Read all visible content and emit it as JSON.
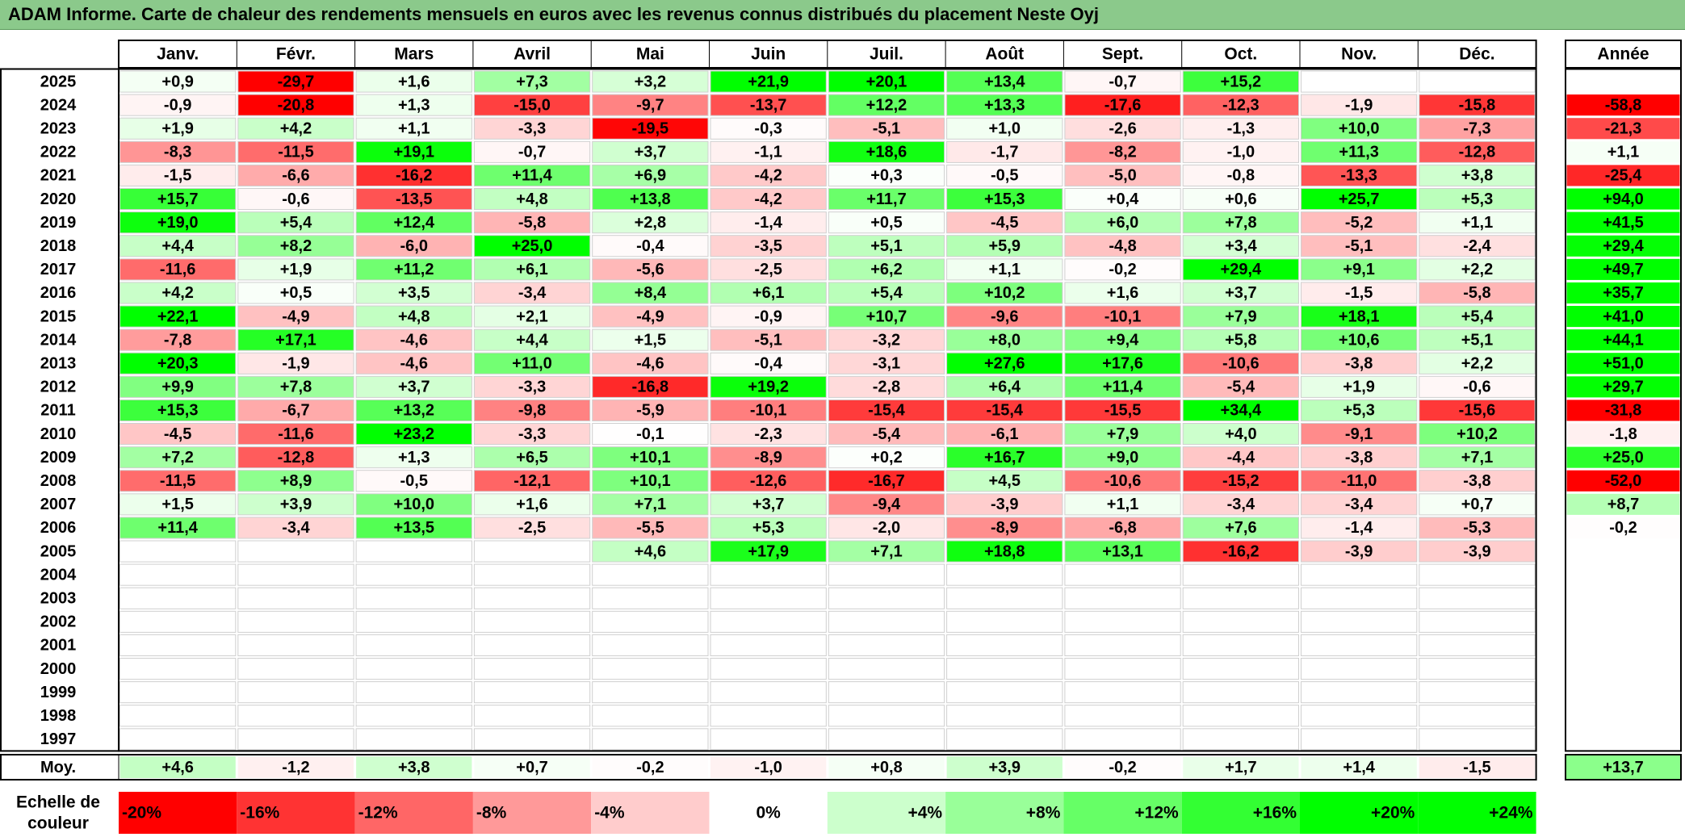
{
  "title": "ADAM Informe. Carte de chaleur des rendements mensuels en euros avec les revenus connus distribués du placement Neste Oyj",
  "colors": {
    "negative": "#ff0000",
    "neutral": "#ffffff",
    "positive": "#00ff00",
    "title_bar": "#8bc98b"
  },
  "chart_data": {
    "type": "heatmap",
    "title": "ADAM Informe. Carte de chaleur des rendements mensuels en euros avec les revenus connus distribués du placement Neste Oyj",
    "columns": [
      "Janv.",
      "Févr.",
      "Mars",
      "Avril",
      "Mai",
      "Juin",
      "Juil.",
      "Août",
      "Sept.",
      "Oct.",
      "Nov.",
      "Déc."
    ],
    "year_header": "Année",
    "rows": [
      {
        "year": "2025",
        "months": [
          "+0,9",
          "-29,7",
          "+1,6",
          "+7,3",
          "+3,2",
          "+21,9",
          "+20,1",
          "+13,4",
          "-0,7",
          "+15,2",
          "",
          ""
        ],
        "annual": ""
      },
      {
        "year": "2024",
        "months": [
          "-0,9",
          "-20,8",
          "+1,3",
          "-15,0",
          "-9,7",
          "-13,7",
          "+12,2",
          "+13,3",
          "-17,6",
          "-12,3",
          "-1,9",
          "-15,8"
        ],
        "annual": "-58,8"
      },
      {
        "year": "2023",
        "months": [
          "+1,9",
          "+4,2",
          "+1,1",
          "-3,3",
          "-19,5",
          "-0,3",
          "-5,1",
          "+1,0",
          "-2,6",
          "-1,3",
          "+10,0",
          "-7,3"
        ],
        "annual": "-21,3"
      },
      {
        "year": "2022",
        "months": [
          "-8,3",
          "-11,5",
          "+19,1",
          "-0,7",
          "+3,7",
          "-1,1",
          "+18,6",
          "-1,7",
          "-8,2",
          "-1,0",
          "+11,3",
          "-12,8"
        ],
        "annual": "+1,1"
      },
      {
        "year": "2021",
        "months": [
          "-1,5",
          "-6,6",
          "-16,2",
          "+11,4",
          "+6,9",
          "-4,2",
          "+0,3",
          "-0,5",
          "-5,0",
          "-0,8",
          "-13,3",
          "+3,8"
        ],
        "annual": "-25,4"
      },
      {
        "year": "2020",
        "months": [
          "+15,7",
          "-0,6",
          "-13,5",
          "+4,8",
          "+13,8",
          "-4,2",
          "+11,7",
          "+15,3",
          "+0,4",
          "+0,6",
          "+25,7",
          "+5,3"
        ],
        "annual": "+94,0"
      },
      {
        "year": "2019",
        "months": [
          "+19,0",
          "+5,4",
          "+12,4",
          "-5,8",
          "+2,8",
          "-1,4",
          "+0,5",
          "-4,5",
          "+6,0",
          "+7,8",
          "-5,2",
          "+1,1"
        ],
        "annual": "+41,5"
      },
      {
        "year": "2018",
        "months": [
          "+4,4",
          "+8,2",
          "-6,0",
          "+25,0",
          "-0,4",
          "-3,5",
          "+5,1",
          "+5,9",
          "-4,8",
          "+3,4",
          "-5,1",
          "-2,4"
        ],
        "annual": "+29,4"
      },
      {
        "year": "2017",
        "months": [
          "-11,6",
          "+1,9",
          "+11,2",
          "+6,1",
          "-5,6",
          "-2,5",
          "+6,2",
          "+1,1",
          "-0,2",
          "+29,4",
          "+9,1",
          "+2,2"
        ],
        "annual": "+49,7"
      },
      {
        "year": "2016",
        "months": [
          "+4,2",
          "+0,5",
          "+3,5",
          "-3,4",
          "+8,4",
          "+6,1",
          "+5,4",
          "+10,2",
          "+1,6",
          "+3,7",
          "-1,5",
          "-5,8"
        ],
        "annual": "+35,7"
      },
      {
        "year": "2015",
        "months": [
          "+22,1",
          "-4,9",
          "+4,8",
          "+2,1",
          "-4,9",
          "-0,9",
          "+10,7",
          "-9,6",
          "-10,1",
          "+7,9",
          "+18,1",
          "+5,4"
        ],
        "annual": "+41,0"
      },
      {
        "year": "2014",
        "months": [
          "-7,8",
          "+17,1",
          "-4,6",
          "+4,4",
          "+1,5",
          "-5,1",
          "-3,2",
          "+8,0",
          "+9,4",
          "+5,8",
          "+10,6",
          "+5,1"
        ],
        "annual": "+44,1"
      },
      {
        "year": "2013",
        "months": [
          "+20,3",
          "-1,9",
          "-4,6",
          "+11,0",
          "-4,6",
          "-0,4",
          "-3,1",
          "+27,6",
          "+17,6",
          "-10,6",
          "-3,8",
          "+2,2"
        ],
        "annual": "+51,0"
      },
      {
        "year": "2012",
        "months": [
          "+9,9",
          "+7,8",
          "+3,7",
          "-3,3",
          "-16,8",
          "+19,2",
          "-2,8",
          "+6,4",
          "+11,4",
          "-5,4",
          "+1,9",
          "-0,6"
        ],
        "annual": "+29,7"
      },
      {
        "year": "2011",
        "months": [
          "+15,3",
          "-6,7",
          "+13,2",
          "-9,8",
          "-5,9",
          "-10,1",
          "-15,4",
          "-15,4",
          "-15,5",
          "+34,4",
          "+5,3",
          "-15,6"
        ],
        "annual": "-31,8"
      },
      {
        "year": "2010",
        "months": [
          "-4,5",
          "-11,6",
          "+23,2",
          "-3,3",
          "-0,1",
          "-2,3",
          "-5,4",
          "-6,1",
          "+7,9",
          "+4,0",
          "-9,1",
          "+10,2"
        ],
        "annual": "-1,8"
      },
      {
        "year": "2009",
        "months": [
          "+7,2",
          "-12,8",
          "+1,3",
          "+6,5",
          "+10,1",
          "-8,9",
          "+0,2",
          "+16,7",
          "+9,0",
          "-4,4",
          "-3,8",
          "+7,1"
        ],
        "annual": "+25,0"
      },
      {
        "year": "2008",
        "months": [
          "-11,5",
          "+8,9",
          "-0,5",
          "-12,1",
          "+10,1",
          "-12,6",
          "-16,7",
          "+4,5",
          "-10,6",
          "-15,2",
          "-11,0",
          "-3,8"
        ],
        "annual": "-52,0"
      },
      {
        "year": "2007",
        "months": [
          "+1,5",
          "+3,9",
          "+10,0",
          "+1,6",
          "+7,1",
          "+3,7",
          "-9,4",
          "-3,9",
          "+1,1",
          "-3,4",
          "-3,4",
          "+0,7"
        ],
        "annual": "+8,7"
      },
      {
        "year": "2006",
        "months": [
          "+11,4",
          "-3,4",
          "+13,5",
          "-2,5",
          "-5,5",
          "+5,3",
          "-2,0",
          "-8,9",
          "-6,8",
          "+7,6",
          "-1,4",
          "-5,3"
        ],
        "annual": "-0,2"
      },
      {
        "year": "2005",
        "months": [
          "",
          "",
          "",
          "",
          "+4,6",
          "+17,9",
          "+7,1",
          "+18,8",
          "+13,1",
          "-16,2",
          "-3,9",
          "-3,9"
        ],
        "annual": ""
      },
      {
        "year": "2004",
        "months": [
          "",
          "",
          "",
          "",
          "",
          "",
          "",
          "",
          "",
          "",
          "",
          ""
        ],
        "annual": ""
      },
      {
        "year": "2003",
        "months": [
          "",
          "",
          "",
          "",
          "",
          "",
          "",
          "",
          "",
          "",
          "",
          ""
        ],
        "annual": ""
      },
      {
        "year": "2002",
        "months": [
          "",
          "",
          "",
          "",
          "",
          "",
          "",
          "",
          "",
          "",
          "",
          ""
        ],
        "annual": ""
      },
      {
        "year": "2001",
        "months": [
          "",
          "",
          "",
          "",
          "",
          "",
          "",
          "",
          "",
          "",
          "",
          ""
        ],
        "annual": ""
      },
      {
        "year": "2000",
        "months": [
          "",
          "",
          "",
          "",
          "",
          "",
          "",
          "",
          "",
          "",
          "",
          ""
        ],
        "annual": ""
      },
      {
        "year": "1999",
        "months": [
          "",
          "",
          "",
          "",
          "",
          "",
          "",
          "",
          "",
          "",
          "",
          ""
        ],
        "annual": ""
      },
      {
        "year": "1998",
        "months": [
          "",
          "",
          "",
          "",
          "",
          "",
          "",
          "",
          "",
          "",
          "",
          ""
        ],
        "annual": ""
      },
      {
        "year": "1997",
        "months": [
          "",
          "",
          "",
          "",
          "",
          "",
          "",
          "",
          "",
          "",
          "",
          ""
        ],
        "annual": ""
      }
    ],
    "average": {
      "label": "Moy.",
      "months": [
        "+4,6",
        "-1,2",
        "+3,8",
        "+0,7",
        "-0,2",
        "-1,0",
        "+0,8",
        "+3,9",
        "-0,2",
        "+1,7",
        "+1,4",
        "-1,5"
      ],
      "annual": "+13,7"
    },
    "scale": {
      "label_line1": "Echelle de",
      "label_line2": "couleur",
      "steps": [
        {
          "label": "-20%",
          "value": -20
        },
        {
          "label": "-16%",
          "value": -16
        },
        {
          "label": "-12%",
          "value": -12
        },
        {
          "label": "-8%",
          "value": -8
        },
        {
          "label": "-4%",
          "value": -4
        },
        {
          "label": "0%",
          "value": 0
        },
        {
          "label": "+4%",
          "value": 4
        },
        {
          "label": "+8%",
          "value": 8
        },
        {
          "label": "+12%",
          "value": 12
        },
        {
          "label": "+16%",
          "value": 16
        },
        {
          "label": "+20%",
          "value": 20
        },
        {
          "label": "+24%",
          "value": 24
        }
      ]
    }
  }
}
